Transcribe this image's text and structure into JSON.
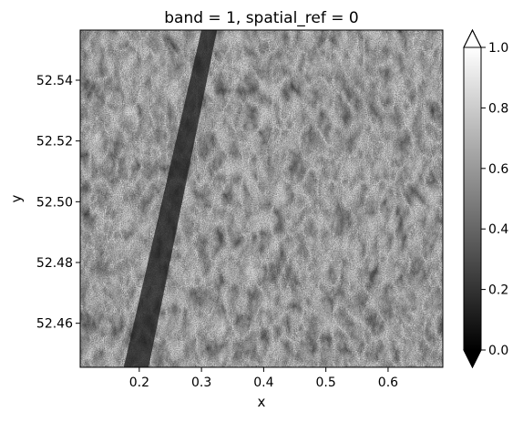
{
  "chart_data": {
    "type": "heatmap",
    "title": "band = 1, spatial_ref = 0",
    "xlabel": "x",
    "ylabel": "y",
    "xlim": [
      0.105,
      0.688
    ],
    "ylim": [
      52.4455,
      52.5565
    ],
    "x_ticks": [
      {
        "value": 0.2,
        "label": "0.2"
      },
      {
        "value": 0.3,
        "label": "0.3"
      },
      {
        "value": 0.4,
        "label": "0.4"
      },
      {
        "value": 0.5,
        "label": "0.5"
      },
      {
        "value": 0.6,
        "label": "0.6"
      }
    ],
    "y_ticks": [
      {
        "value": 52.46,
        "label": "52.46"
      },
      {
        "value": 52.48,
        "label": "52.48"
      },
      {
        "value": 52.5,
        "label": "52.50"
      },
      {
        "value": 52.52,
        "label": "52.52"
      },
      {
        "value": 52.54,
        "label": "52.54"
      }
    ],
    "data_footprint": {
      "corners": [
        {
          "x": 0.108,
          "y": 52.5485
        },
        {
          "x": 0.686,
          "y": 52.5565
        },
        {
          "x": 0.686,
          "y": 52.4535
        },
        {
          "x": 0.108,
          "y": 52.4455
        }
      ]
    },
    "colorbar": {
      "colormap": "gray",
      "range": [
        0.0,
        1.0
      ],
      "extend": "both",
      "ticks": [
        {
          "value": 0.0,
          "label": "0.0"
        },
        {
          "value": 0.2,
          "label": "0.2"
        },
        {
          "value": 0.4,
          "label": "0.4"
        },
        {
          "value": 0.6,
          "label": "0.6"
        },
        {
          "value": 0.8,
          "label": "0.8"
        },
        {
          "value": 1.0,
          "label": "1.0"
        }
      ]
    },
    "grid": false
  }
}
